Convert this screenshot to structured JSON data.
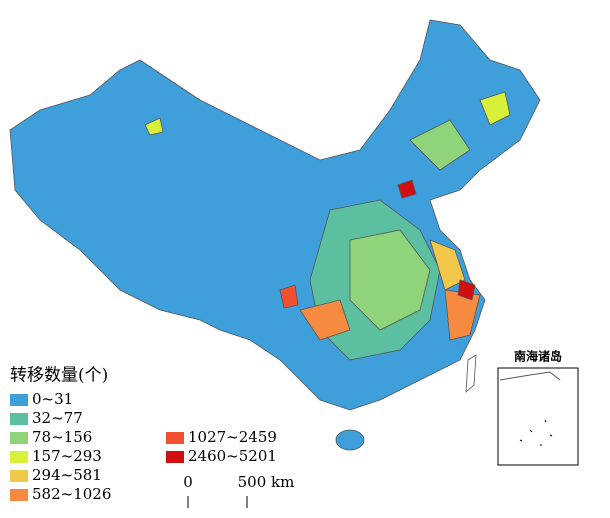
{
  "legend": {
    "title": "转移数量(个)",
    "items": [
      {
        "label": "0~31",
        "color": "#3f9fdb"
      },
      {
        "label": "32~77",
        "color": "#5cbfa0"
      },
      {
        "label": "78~156",
        "color": "#8fd47a"
      },
      {
        "label": "157~293",
        "color": "#d6f03c"
      },
      {
        "label": "294~581",
        "color": "#f2c84a"
      },
      {
        "label": "582~1026",
        "color": "#f58a40"
      },
      {
        "label": "1027~2459",
        "color": "#f05030"
      },
      {
        "label": "2460~5201",
        "color": "#d01010"
      }
    ]
  },
  "scale_bar": {
    "labels": [
      "0",
      "500 km"
    ]
  },
  "inset": {
    "title": "南海诸岛"
  }
}
